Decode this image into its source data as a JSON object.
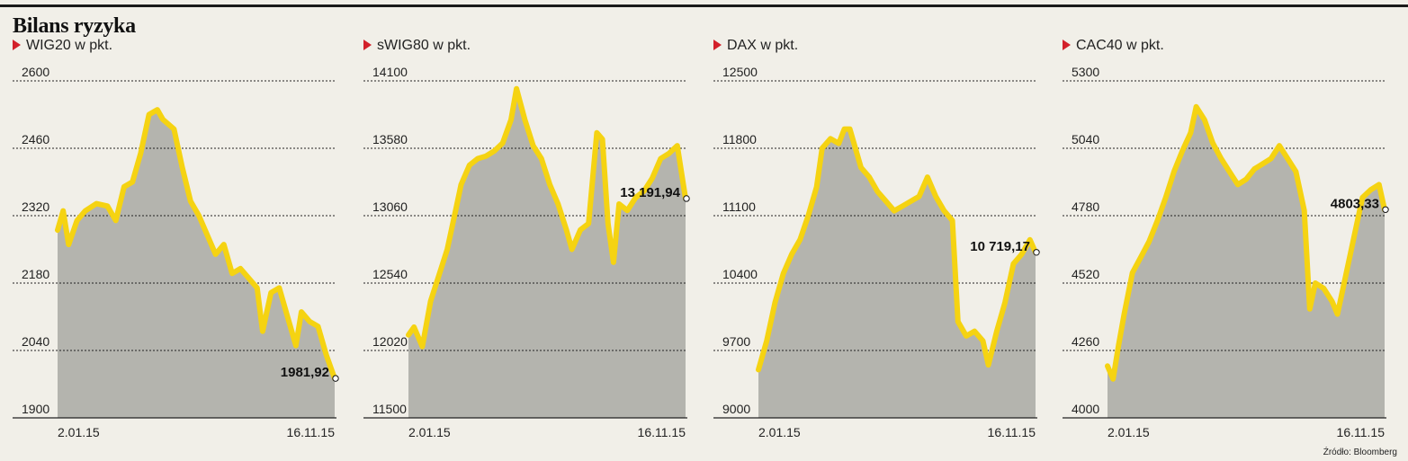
{
  "title": "Bilans ryzyka",
  "source": "Źródło: Bloomberg",
  "colors": {
    "line": "#f5d312",
    "area": "#b4b4ae",
    "grid": "#222222",
    "marker": "#d3202a"
  },
  "chart_data": [
    {
      "type": "area",
      "title": "WIG20 w pkt.",
      "x_start": "2.01.15",
      "x_end": "16.11.15",
      "yticks": [
        "2600",
        "2460",
        "2320",
        "2180",
        "2040",
        "1900"
      ],
      "ylim": [
        1900,
        2600
      ],
      "last_label": "1981,92",
      "last_value": 1981.92,
      "points": [
        [
          0,
          2290
        ],
        [
          0.02,
          2330
        ],
        [
          0.04,
          2260
        ],
        [
          0.07,
          2310
        ],
        [
          0.1,
          2330
        ],
        [
          0.14,
          2345
        ],
        [
          0.18,
          2340
        ],
        [
          0.21,
          2310
        ],
        [
          0.24,
          2380
        ],
        [
          0.27,
          2390
        ],
        [
          0.3,
          2450
        ],
        [
          0.33,
          2530
        ],
        [
          0.36,
          2540
        ],
        [
          0.38,
          2520
        ],
        [
          0.42,
          2500
        ],
        [
          0.45,
          2420
        ],
        [
          0.48,
          2350
        ],
        [
          0.51,
          2320
        ],
        [
          0.54,
          2280
        ],
        [
          0.57,
          2240
        ],
        [
          0.6,
          2260
        ],
        [
          0.63,
          2200
        ],
        [
          0.66,
          2210
        ],
        [
          0.69,
          2190
        ],
        [
          0.72,
          2170
        ],
        [
          0.74,
          2080
        ],
        [
          0.77,
          2160
        ],
        [
          0.8,
          2170
        ],
        [
          0.83,
          2110
        ],
        [
          0.86,
          2050
        ],
        [
          0.88,
          2120
        ],
        [
          0.91,
          2100
        ],
        [
          0.94,
          2090
        ],
        [
          0.97,
          2030
        ],
        [
          1.0,
          1981.92
        ]
      ],
      "grid": true
    },
    {
      "type": "area",
      "title": "sWIG80 w pkt.",
      "x_start": "2.01.15",
      "x_end": "16.11.15",
      "yticks": [
        "14100",
        "13580",
        "13060",
        "12540",
        "12020",
        "11500"
      ],
      "ylim": [
        11500,
        14100
      ],
      "last_label": "13 191,94",
      "last_value": 13191.94,
      "points": [
        [
          0,
          12140
        ],
        [
          0.02,
          12200
        ],
        [
          0.05,
          12050
        ],
        [
          0.08,
          12400
        ],
        [
          0.11,
          12600
        ],
        [
          0.14,
          12800
        ],
        [
          0.17,
          13100
        ],
        [
          0.19,
          13300
        ],
        [
          0.22,
          13450
        ],
        [
          0.25,
          13500
        ],
        [
          0.28,
          13520
        ],
        [
          0.31,
          13560
        ],
        [
          0.34,
          13620
        ],
        [
          0.37,
          13800
        ],
        [
          0.39,
          14040
        ],
        [
          0.42,
          13800
        ],
        [
          0.45,
          13600
        ],
        [
          0.48,
          13500
        ],
        [
          0.51,
          13300
        ],
        [
          0.54,
          13150
        ],
        [
          0.57,
          12950
        ],
        [
          0.59,
          12800
        ],
        [
          0.62,
          12950
        ],
        [
          0.65,
          13000
        ],
        [
          0.68,
          13700
        ],
        [
          0.7,
          13650
        ],
        [
          0.72,
          13000
        ],
        [
          0.74,
          12700
        ],
        [
          0.76,
          13150
        ],
        [
          0.79,
          13100
        ],
        [
          0.82,
          13200
        ],
        [
          0.85,
          13250
        ],
        [
          0.88,
          13350
        ],
        [
          0.91,
          13500
        ],
        [
          0.94,
          13540
        ],
        [
          0.97,
          13600
        ],
        [
          1.0,
          13191.94
        ]
      ],
      "grid": true
    },
    {
      "type": "area",
      "title": "DAX w pkt.",
      "x_start": "2.01.15",
      "x_end": "16.11.15",
      "yticks": [
        "12500",
        "11800",
        "11100",
        "10400",
        "9700",
        "9000"
      ],
      "ylim": [
        9000,
        12500
      ],
      "last_label": "10 719,17",
      "last_value": 10719.17,
      "points": [
        [
          0,
          9500
        ],
        [
          0.03,
          9800
        ],
        [
          0.06,
          10200
        ],
        [
          0.09,
          10500
        ],
        [
          0.12,
          10700
        ],
        [
          0.15,
          10850
        ],
        [
          0.18,
          11100
        ],
        [
          0.21,
          11400
        ],
        [
          0.23,
          11800
        ],
        [
          0.26,
          11900
        ],
        [
          0.29,
          11850
        ],
        [
          0.31,
          12000
        ],
        [
          0.33,
          12000
        ],
        [
          0.35,
          11800
        ],
        [
          0.37,
          11600
        ],
        [
          0.4,
          11500
        ],
        [
          0.43,
          11350
        ],
        [
          0.46,
          11250
        ],
        [
          0.49,
          11150
        ],
        [
          0.52,
          11200
        ],
        [
          0.55,
          11250
        ],
        [
          0.58,
          11300
        ],
        [
          0.61,
          11500
        ],
        [
          0.64,
          11300
        ],
        [
          0.67,
          11150
        ],
        [
          0.7,
          11050
        ],
        [
          0.72,
          10000
        ],
        [
          0.75,
          9850
        ],
        [
          0.78,
          9900
        ],
        [
          0.81,
          9800
        ],
        [
          0.83,
          9550
        ],
        [
          0.86,
          9900
        ],
        [
          0.89,
          10200
        ],
        [
          0.92,
          10600
        ],
        [
          0.95,
          10700
        ],
        [
          0.98,
          10850
        ],
        [
          1.0,
          10719.17
        ]
      ],
      "grid": true
    },
    {
      "type": "area",
      "title": "CAC40 w pkt.",
      "x_start": "2.01.15",
      "x_end": "16.11.15",
      "yticks": [
        "5300",
        "5040",
        "4780",
        "4520",
        "4260",
        "4000"
      ],
      "ylim": [
        4000,
        5300
      ],
      "last_label": "4803,33",
      "last_value": 4803.33,
      "points": [
        [
          0,
          4200
        ],
        [
          0.02,
          4150
        ],
        [
          0.04,
          4280
        ],
        [
          0.06,
          4400
        ],
        [
          0.09,
          4560
        ],
        [
          0.12,
          4620
        ],
        [
          0.15,
          4680
        ],
        [
          0.18,
          4760
        ],
        [
          0.21,
          4850
        ],
        [
          0.24,
          4950
        ],
        [
          0.27,
          5030
        ],
        [
          0.3,
          5100
        ],
        [
          0.32,
          5200
        ],
        [
          0.35,
          5150
        ],
        [
          0.38,
          5060
        ],
        [
          0.41,
          5000
        ],
        [
          0.44,
          4950
        ],
        [
          0.47,
          4900
        ],
        [
          0.5,
          4920
        ],
        [
          0.53,
          4960
        ],
        [
          0.56,
          4980
        ],
        [
          0.59,
          5000
        ],
        [
          0.62,
          5050
        ],
        [
          0.65,
          5000
        ],
        [
          0.68,
          4950
        ],
        [
          0.71,
          4800
        ],
        [
          0.73,
          4420
        ],
        [
          0.75,
          4520
        ],
        [
          0.78,
          4500
        ],
        [
          0.81,
          4450
        ],
        [
          0.83,
          4400
        ],
        [
          0.86,
          4550
        ],
        [
          0.89,
          4700
        ],
        [
          0.92,
          4850
        ],
        [
          0.95,
          4880
        ],
        [
          0.98,
          4900
        ],
        [
          1.0,
          4803.33
        ]
      ],
      "grid": true
    }
  ]
}
